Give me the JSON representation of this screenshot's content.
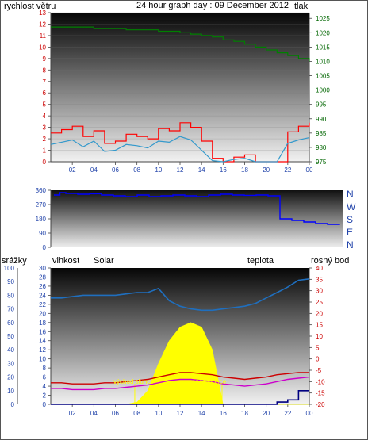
{
  "header": {
    "title": "24 hour graph day : 09 December 2012",
    "wind_label": "rychlost větru",
    "pressure_label": "tlak"
  },
  "colors": {
    "wind_gust": "#ff0000",
    "wind_avg": "#3399cc",
    "pressure": "#008000",
    "direction": "#0000ff",
    "temperature": "#cc0000",
    "dewpoint": "#cc00cc",
    "humidity": "#1f6fbf",
    "solar": "#ffff00",
    "rain": "#000080",
    "label_red": "#cc0000",
    "label_blue": "#1a1a99",
    "label_green": "#006600",
    "label_orange": "#d4a017",
    "label_magenta": "#cc00cc",
    "tick_blue": "#2244aa",
    "tick_green": "#006600",
    "tick_red": "#cc0000",
    "tick_magenta": "#aa00aa"
  },
  "x_ticks": [
    "02",
    "04",
    "06",
    "08",
    "10",
    "12",
    "14",
    "16",
    "18",
    "20",
    "22",
    "00"
  ],
  "wind_axis_ticks": [
    "0",
    "1",
    "2",
    "3",
    "4",
    "5",
    "6",
    "7",
    "8",
    "9",
    "10",
    "11",
    "12",
    "13"
  ],
  "pressure_axis_ticks": [
    "975",
    "980",
    "985",
    "990",
    "995",
    "1000",
    "1005",
    "1010",
    "1015",
    "1020",
    "1025"
  ],
  "direction_axis_ticks": [
    "0",
    "90",
    "180",
    "270",
    "360"
  ],
  "direction_compass": [
    "N",
    "W",
    "S",
    "E",
    "N"
  ],
  "bottom_labels": {
    "rain": "srážky",
    "humidity": "vlhkost",
    "solar": "Solar",
    "temperature": "teplota",
    "dewpoint": "rosný bod"
  },
  "rain_axis_ticks": [
    "0",
    "10",
    "20",
    "30",
    "40",
    "50",
    "60",
    "70",
    "80",
    "90",
    "100"
  ],
  "humidity_axis_ticks": [
    "0",
    "2",
    "4",
    "6",
    "8",
    "10",
    "12",
    "14",
    "16",
    "18",
    "20",
    "22",
    "24",
    "26",
    "28",
    "30"
  ],
  "temp_axis_ticks": [
    "-20",
    "-15",
    "-10",
    "-5",
    "0",
    "5",
    "10",
    "15",
    "20",
    "25",
    "30",
    "35",
    "40"
  ],
  "annotations": {
    "sunrise": "východ slunce",
    "sunset": "západ slunce"
  },
  "chart_data": [
    {
      "type": "line",
      "title": "24 hour graph day : 09 December 2012",
      "xlabel": "",
      "ylabel": "rychlost větru",
      "y2label": "tlak",
      "x": [
        0,
        1,
        2,
        3,
        4,
        5,
        6,
        7,
        8,
        9,
        10,
        11,
        12,
        13,
        14,
        15,
        16,
        17,
        18,
        19,
        20,
        21,
        22,
        23,
        24
      ],
      "ylim": [
        0,
        13
      ],
      "y2lim": [
        975,
        1027
      ],
      "series": [
        {
          "name": "rychlost větru",
          "values": [
            2.5,
            2.8,
            3.1,
            2.2,
            2.7,
            1.6,
            1.8,
            2.4,
            2.2,
            2.0,
            2.9,
            2.7,
            3.4,
            3.0,
            1.8,
            0.3,
            0.0,
            0.4,
            0.6,
            0.0,
            0.0,
            0.0,
            2.6,
            3.1,
            3.4
          ]
        },
        {
          "values": [
            1.5,
            1.7,
            1.9,
            1.3,
            1.8,
            0.9,
            1.0,
            1.5,
            1.4,
            1.2,
            1.8,
            1.7,
            2.2,
            1.9,
            1.0,
            0.1,
            0.0,
            0.2,
            0.3,
            0.0,
            0.0,
            0.0,
            1.6,
            1.9,
            2.1
          ]
        },
        {
          "name": "tlak",
          "values": [
            1022,
            1022,
            1022,
            1022,
            1021.5,
            1021.5,
            1021.5,
            1021,
            1021,
            1021,
            1020.5,
            1020.5,
            1020,
            1019.5,
            1019,
            1018.5,
            1017.5,
            1017,
            1016,
            1015,
            1014,
            1013,
            1012,
            1011,
            1010
          ]
        }
      ]
    },
    {
      "type": "line",
      "title": "",
      "xlabel": "",
      "ylabel": "",
      "x": [
        0,
        0.5,
        1,
        2,
        3,
        4,
        5,
        6,
        7,
        8,
        9,
        10,
        11,
        12,
        13,
        14,
        15,
        16,
        17,
        18,
        19,
        20,
        21,
        22,
        23,
        24
      ],
      "ylim": [
        0,
        360
      ],
      "series": [
        {
          "values": [
            330,
            345,
            340,
            335,
            338,
            330,
            325,
            320,
            330,
            320,
            325,
            330,
            325,
            320,
            330,
            335,
            330,
            328,
            330,
            325,
            180,
            170,
            160,
            150,
            145,
            150
          ]
        }
      ]
    },
    {
      "type": "line",
      "title": "",
      "xlabel": "",
      "ylabel": "",
      "x": [
        0,
        1,
        2,
        3,
        4,
        5,
        6,
        7,
        8,
        9,
        10,
        11,
        12,
        13,
        14,
        15,
        16,
        17,
        18,
        19,
        20,
        21,
        22,
        23,
        24
      ],
      "ylim": [
        -20,
        40
      ],
      "series": [
        {
          "name": "teplota",
          "values": [
            -10.5,
            -10.5,
            -11,
            -11,
            -11,
            -10.5,
            -10.5,
            -10,
            -9.5,
            -9,
            -8,
            -7,
            -6,
            -6,
            -6.5,
            -7,
            -8,
            -8.5,
            -9,
            -8.5,
            -8,
            -7,
            -6.5,
            -6,
            -6
          ]
        },
        {
          "name": "rosný bod",
          "values": [
            -13,
            -13,
            -13.5,
            -13.5,
            -13.5,
            -13,
            -13,
            -12.5,
            -12,
            -11.5,
            -10.5,
            -9.5,
            -9,
            -9,
            -9.5,
            -10,
            -11,
            -11.5,
            -12,
            -11.5,
            -11,
            -10,
            -9,
            -8.5,
            -8
          ]
        },
        {
          "name": "vlhkost",
          "values": [
            78,
            78,
            79,
            80,
            80,
            80,
            80,
            81,
            82,
            82,
            85,
            76,
            72,
            70,
            69,
            69,
            70,
            71,
            72,
            74,
            78,
            82,
            86,
            91,
            92
          ]
        },
        {
          "name": "Solar",
          "values": [
            0,
            0,
            0,
            0,
            0,
            0,
            0,
            0,
            0.5,
            3,
            9,
            14,
            17,
            18,
            17,
            12,
            0,
            0,
            0,
            0,
            0,
            0,
            0,
            0,
            0
          ]
        },
        {
          "name": "srážky",
          "values": [
            0,
            0,
            0,
            0,
            0,
            0,
            0,
            0,
            0,
            0,
            0,
            0,
            0,
            0,
            0,
            0,
            0,
            0,
            0,
            0,
            0,
            0.5,
            1,
            3,
            3
          ]
        }
      ]
    }
  ]
}
